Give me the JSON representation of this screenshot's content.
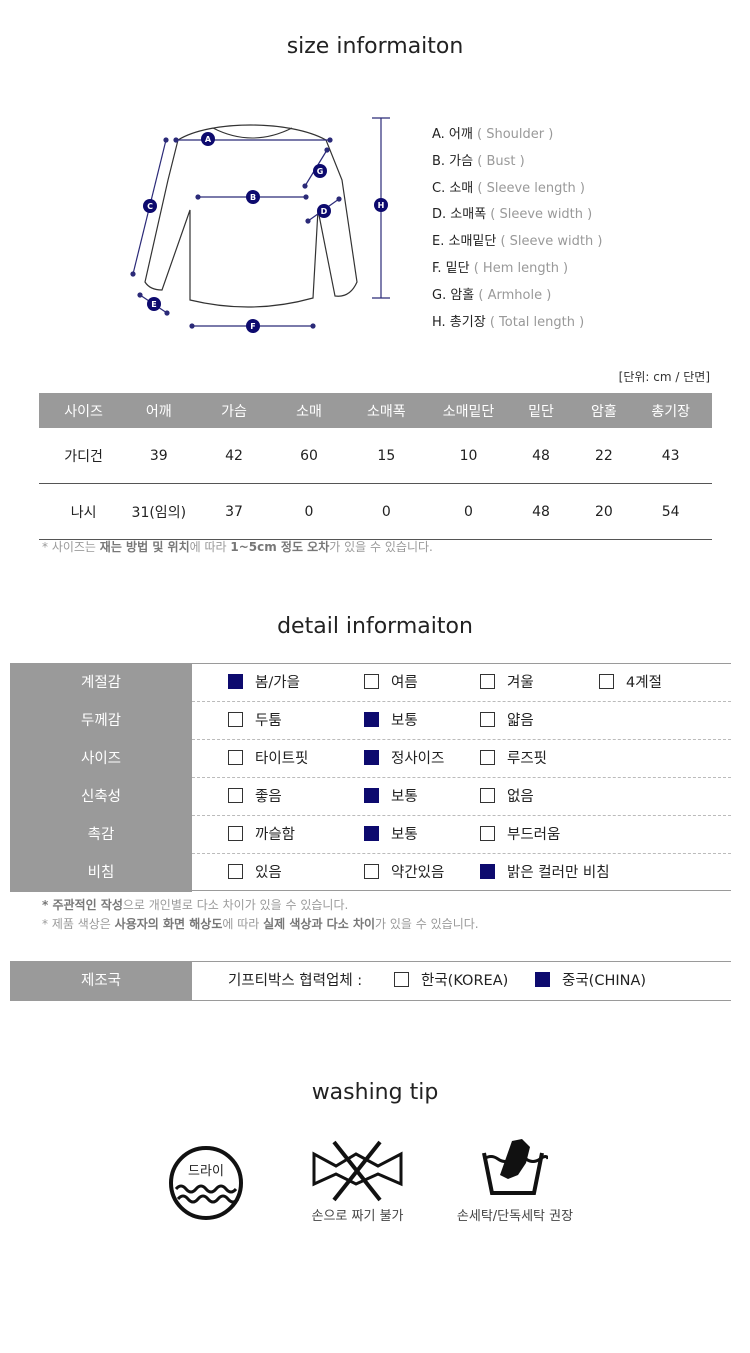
{
  "size_section": {
    "title": "size informaiton",
    "legend": [
      {
        "ko": "A. 어깨",
        "en": "( Shoulder )"
      },
      {
        "ko": "B. 가슴",
        "en": "( Bust )"
      },
      {
        "ko": "C. 소매",
        "en": "( Sleeve length )"
      },
      {
        "ko": "D. 소매폭",
        "en": "( Sleeve width )"
      },
      {
        "ko": "E. 소매밑단",
        "en": "( Sleeve width )"
      },
      {
        "ko": "F. 밑단",
        "en": "( Hem length )"
      },
      {
        "ko": "G. 암홀",
        "en": "( Armhole )"
      },
      {
        "ko": "H. 총기장",
        "en": "( Total length )"
      }
    ],
    "diagram_markers": [
      "A",
      "B",
      "C",
      "D",
      "E",
      "F",
      "G",
      "H"
    ],
    "unit_label": "[단위: cm / 단면]",
    "table": {
      "headers": [
        "사이즈",
        "어깨",
        "가슴",
        "소매",
        "소매폭",
        "소매밑단",
        "밑단",
        "암홀",
        "총기장"
      ],
      "rows": [
        [
          "가디건",
          "39",
          "42",
          "60",
          "15",
          "10",
          "48",
          "22",
          "43"
        ],
        [
          "나시",
          "31(임의)",
          "37",
          "0",
          "0",
          "0",
          "48",
          "20",
          "54"
        ]
      ]
    },
    "note": {
      "p1": "* 사이즈는 ",
      "b1": "재는 방법 및 위치",
      "p2": "에 따라 ",
      "b2": "1~5cm 정도 오차",
      "p3": "가 있을 수 있습니다."
    }
  },
  "detail_section": {
    "title": "detail informaiton",
    "rows": [
      {
        "label": "계절감",
        "options": [
          {
            "text": "봄/가을",
            "checked": true
          },
          {
            "text": "여름",
            "checked": false
          },
          {
            "text": "겨울",
            "checked": false
          },
          {
            "text": "4계절",
            "checked": false
          }
        ]
      },
      {
        "label": "두께감",
        "options": [
          {
            "text": "두툼",
            "checked": false
          },
          {
            "text": "보통",
            "checked": true
          },
          {
            "text": "얇음",
            "checked": false
          }
        ]
      },
      {
        "label": "사이즈",
        "options": [
          {
            "text": "타이트핏",
            "checked": false
          },
          {
            "text": "정사이즈",
            "checked": true
          },
          {
            "text": "루즈핏",
            "checked": false
          }
        ]
      },
      {
        "label": "신축성",
        "options": [
          {
            "text": "좋음",
            "checked": false
          },
          {
            "text": "보통",
            "checked": true
          },
          {
            "text": "없음",
            "checked": false
          }
        ]
      },
      {
        "label": "촉감",
        "options": [
          {
            "text": "까슬함",
            "checked": false
          },
          {
            "text": "보통",
            "checked": true
          },
          {
            "text": "부드러움",
            "checked": false
          }
        ]
      },
      {
        "label": "비침",
        "options": [
          {
            "text": "있음",
            "checked": false
          },
          {
            "text": "약간있음",
            "checked": false
          },
          {
            "text": "밝은 컬러만 비침",
            "checked": true
          }
        ]
      }
    ],
    "note1": {
      "b1": "* 주관적인 작성",
      "p1": "으로 개인별로 다소 차이가 있을 수 있습니다."
    },
    "note2": {
      "p1": "* 제품 색상은 ",
      "b1": "사용자의 화면 해상도",
      "p2": "에 따라 ",
      "b2": "실제 색상과 다소 차이",
      "p3": "가 있을 수 있습니다."
    },
    "origin": {
      "label": "제조국",
      "prefix": "기프티박스 협력업체 :",
      "options": [
        {
          "text": "한국(KOREA)",
          "checked": false
        },
        {
          "text": "중국(CHINA)",
          "checked": true
        }
      ]
    }
  },
  "washing_section": {
    "title": "washing tip",
    "dry_label": "드라이",
    "icons": [
      {
        "name": "dry-clean-icon",
        "caption": ""
      },
      {
        "name": "no-wring-icon",
        "caption": "손으로 짜기 불가"
      },
      {
        "name": "hand-wash-icon",
        "caption": "손세탁/단독세탁 권장"
      }
    ]
  },
  "colors": {
    "header_gray": "#9a9a9a",
    "check_navy": "#0d0a6e",
    "marker_navy": "#0d0a6e"
  }
}
